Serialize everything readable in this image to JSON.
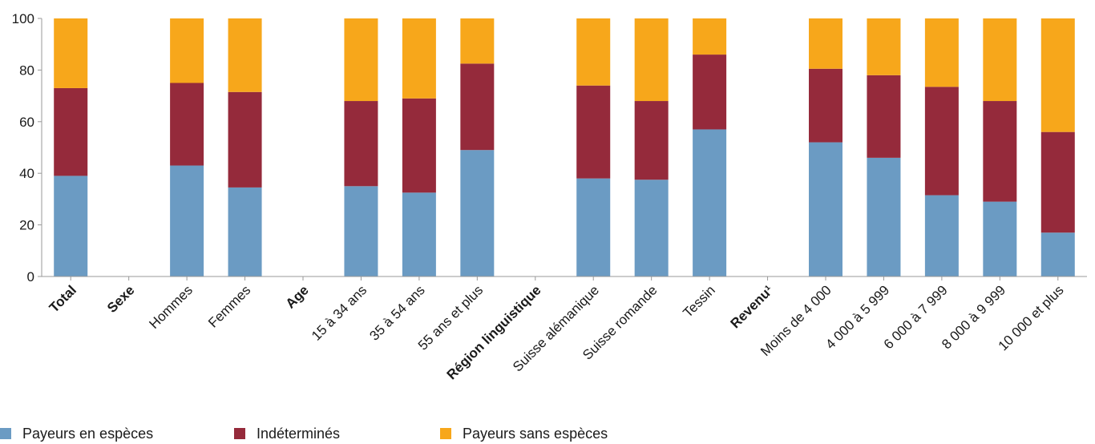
{
  "chart_data": {
    "type": "bar",
    "stacked": true,
    "ylim": [
      0,
      100
    ],
    "yticks": [
      0,
      20,
      40,
      60,
      80,
      100
    ],
    "categories": [
      {
        "label": "Total",
        "bold": true,
        "values": [
          39,
          34,
          27
        ]
      },
      {
        "label": "Sexe",
        "bold": true,
        "values": null
      },
      {
        "label": "Hommes",
        "bold": false,
        "values": [
          43,
          32,
          25
        ]
      },
      {
        "label": "Femmes",
        "bold": false,
        "values": [
          34.5,
          37,
          28.5
        ]
      },
      {
        "label": "Age",
        "bold": true,
        "values": null
      },
      {
        "label": "15 à 34 ans",
        "bold": false,
        "values": [
          35,
          33,
          32
        ]
      },
      {
        "label": "35 à 54 ans",
        "bold": false,
        "values": [
          32.5,
          36.5,
          31
        ]
      },
      {
        "label": "55 ans et plus",
        "bold": false,
        "values": [
          49,
          33.5,
          17.5
        ]
      },
      {
        "label": "Région linguistique",
        "bold": true,
        "values": null
      },
      {
        "label": "Suisse alémanique",
        "bold": false,
        "values": [
          38,
          36,
          26
        ]
      },
      {
        "label": "Suisse romande",
        "bold": false,
        "values": [
          37.5,
          30.5,
          32
        ]
      },
      {
        "label": "Tessin",
        "bold": false,
        "values": [
          57,
          29,
          14
        ]
      },
      {
        "label": "Revenu¹",
        "bold": true,
        "values": null
      },
      {
        "label": "Moins de 4 000",
        "bold": false,
        "values": [
          52,
          28.5,
          19.5
        ]
      },
      {
        "label": "4 000 à 5 999",
        "bold": false,
        "values": [
          46,
          32,
          22
        ]
      },
      {
        "label": "6 000 à 7 999",
        "bold": false,
        "values": [
          31.5,
          42,
          26.5
        ]
      },
      {
        "label": "8 000 à 9 999",
        "bold": false,
        "values": [
          29,
          39,
          32
        ]
      },
      {
        "label": "10 000 et plus",
        "bold": false,
        "values": [
          17,
          39,
          44
        ]
      }
    ],
    "series": [
      {
        "name": "Payeurs en espèces",
        "color": "#6b9bc3"
      },
      {
        "name": "Indéterminés",
        "color": "#952a3b"
      },
      {
        "name": "Payeurs sans espèces",
        "color": "#f7a71b"
      }
    ],
    "legend_position": "bottom-left",
    "grid": false
  }
}
